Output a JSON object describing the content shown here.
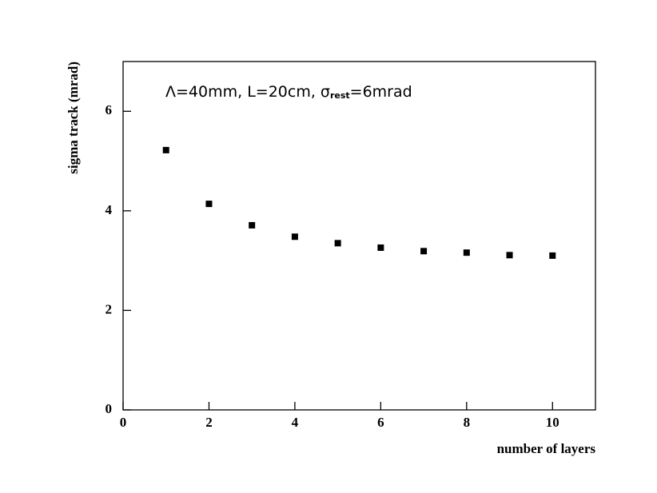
{
  "chart_data": {
    "type": "scatter",
    "annotation": {
      "prefix": "Λ=40mm, L=20cm, σ",
      "subscript": "rest",
      "suffix": "=6mrad"
    },
    "xlabel": "number of layers",
    "ylabel": "sigma track  (mrad)",
    "x": [
      1,
      2,
      3,
      4,
      5,
      6,
      7,
      8,
      9,
      10
    ],
    "series": [
      {
        "color": "#000000",
        "values": [
          5.22,
          4.14,
          3.71,
          3.48,
          3.35,
          3.26,
          3.19,
          3.16,
          3.11,
          3.1
        ]
      }
    ],
    "xlim": [
      0,
      11
    ],
    "xticks": [
      0,
      2,
      4,
      6,
      8,
      10
    ],
    "ylim": [
      0,
      7
    ],
    "yticks": [
      0,
      2,
      4,
      6
    ]
  }
}
